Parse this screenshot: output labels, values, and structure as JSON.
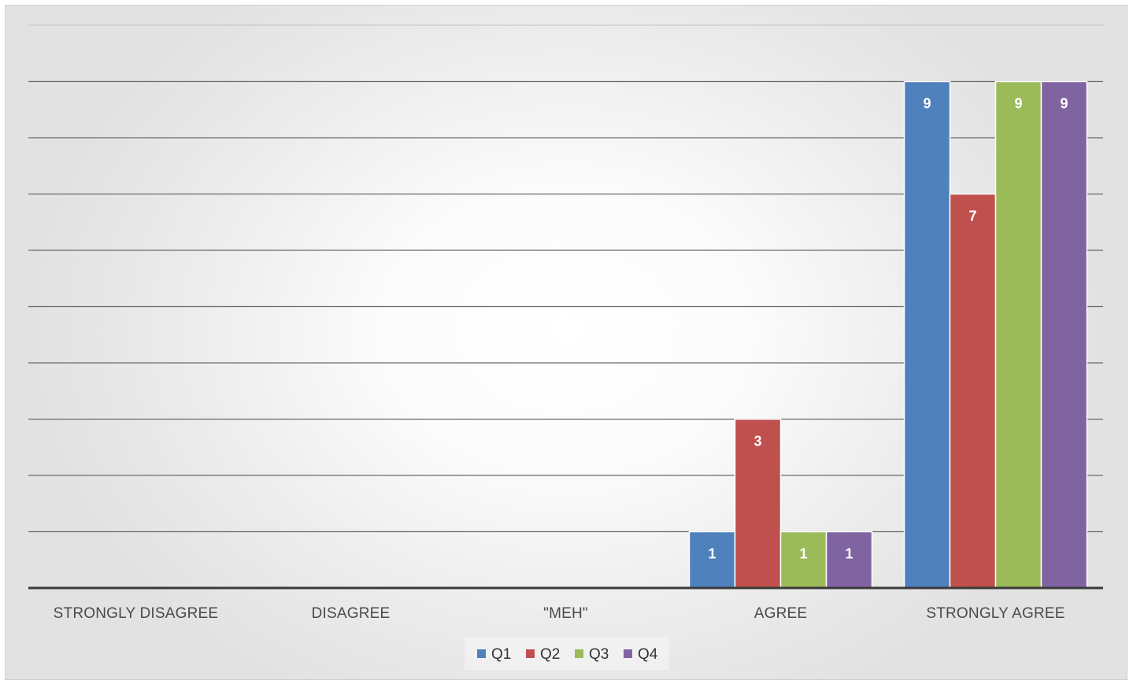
{
  "chart_data": {
    "type": "bar",
    "title": "",
    "xlabel": "",
    "ylabel": "",
    "categories": [
      "STRONGLY DISAGREE",
      "DISAGREE",
      "\"MEH\"",
      "AGREE",
      "STRONGLY AGREE"
    ],
    "series": [
      {
        "name": "Q1",
        "color": "#4f81bd",
        "values": [
          0,
          0,
          0,
          1,
          9
        ]
      },
      {
        "name": "Q2",
        "color": "#c0504d",
        "values": [
          0,
          0,
          0,
          3,
          7
        ]
      },
      {
        "name": "Q3",
        "color": "#9bbb59",
        "values": [
          0,
          0,
          0,
          1,
          9
        ]
      },
      {
        "name": "Q4",
        "color": "#8064a2",
        "values": [
          0,
          0,
          0,
          1,
          9
        ]
      }
    ],
    "ylim": [
      0,
      10
    ],
    "grid": true,
    "y_tick_labels_shown": false,
    "legend_position": "bottom",
    "data_labels": true
  }
}
